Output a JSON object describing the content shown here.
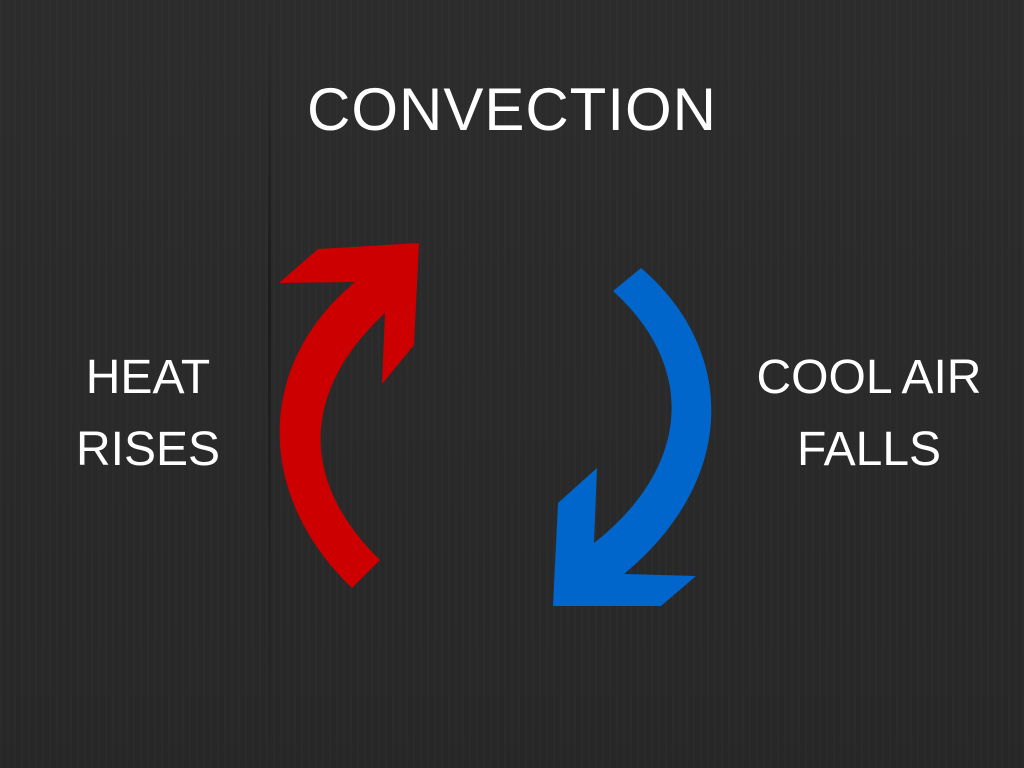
{
  "title": "CONVECTION",
  "left_label": {
    "line1": "HEAT",
    "line2": "RISES"
  },
  "right_label": {
    "line1": "COOL AIR",
    "line2": "FALLS"
  },
  "colors": {
    "background": "#2b2b2b",
    "text": "#ffffff",
    "rising_arrow": "#cc0000",
    "falling_arrow": "#0066cc"
  },
  "icons": {
    "rising": "curved-arrow-up-icon",
    "falling": "curved-arrow-down-icon"
  }
}
